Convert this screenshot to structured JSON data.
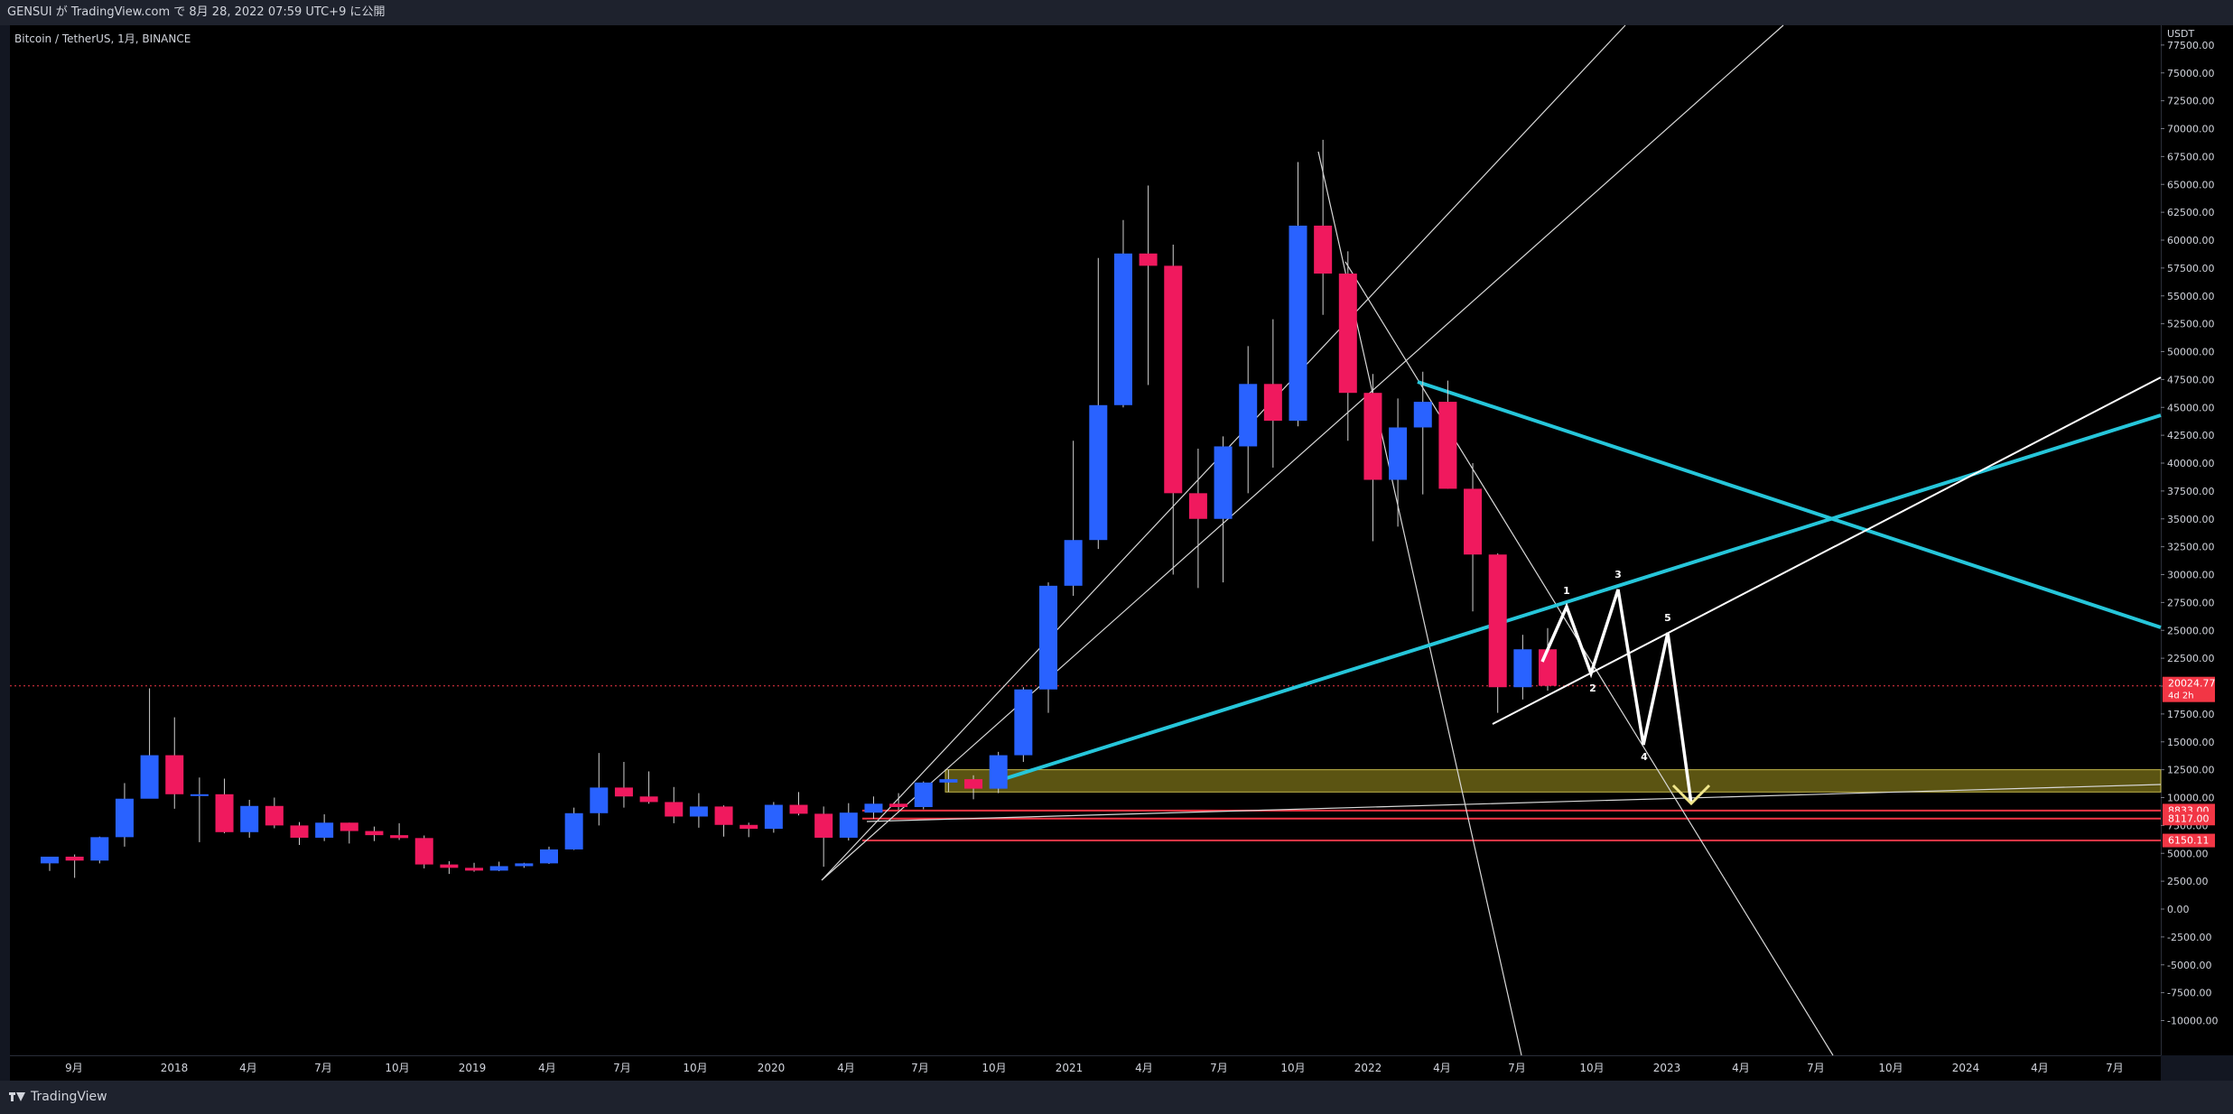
{
  "header": {
    "title": "GENSUI が TradingView.com で 8月 28, 2022 07:59 UTC+9 に公開"
  },
  "footer": {
    "brand": "TradingView"
  },
  "chart_data": {
    "type": "candlestick",
    "symbol": "Bitcoin / TetherUS, 1月, BINANCE",
    "currency": "USDT",
    "ylim": [
      -11000,
      80000
    ],
    "y_ticks": [
      "77500.00",
      "75000.00",
      "72500.00",
      "70000.00",
      "67500.00",
      "65000.00",
      "62500.00",
      "60000.00",
      "57500.00",
      "55000.00",
      "52500.00",
      "50000.00",
      "47500.00",
      "45000.00",
      "42500.00",
      "40000.00",
      "37500.00",
      "35000.00",
      "32500.00",
      "30000.00",
      "27500.00",
      "25000.00",
      "22500.00",
      "20000.00",
      "17500.00",
      "15000.00",
      "12500.00",
      "10000.00",
      "7500.00",
      "5000.00",
      "2500.00",
      "0.00",
      "-2500.00",
      "-5000.00",
      "-7500.00",
      "-10000.00"
    ],
    "x_ticks": [
      "9月",
      "2018",
      "4月",
      "7月",
      "10月",
      "2019",
      "4月",
      "7月",
      "10月",
      "2020",
      "4月",
      "7月",
      "10月",
      "2021",
      "4月",
      "7月",
      "10月",
      "2022",
      "4月",
      "7月",
      "10月",
      "2023",
      "4月",
      "7月",
      "10月",
      "2024",
      "4月",
      "7月"
    ],
    "price_labels": [
      {
        "value": 20024.77,
        "text": "20024.77",
        "sub": "4d 2h",
        "color": "#f23645"
      },
      {
        "value": 8833.0,
        "text": "8833.00",
        "color": "#f23645"
      },
      {
        "value": 8117.0,
        "text": "8117.00",
        "color": "#f23645"
      },
      {
        "value": 6150.11,
        "text": "6150.11",
        "color": "#f23645"
      }
    ],
    "candles": [
      {
        "t": "2017-08",
        "o": 4100,
        "h": 4650,
        "l": 3420,
        "c": 4700
      },
      {
        "t": "2017-09",
        "o": 4700,
        "h": 4900,
        "l": 2800,
        "c": 4350
      },
      {
        "t": "2017-10",
        "o": 4350,
        "h": 6500,
        "l": 4100,
        "c": 6450
      },
      {
        "t": "2017-11",
        "o": 6450,
        "h": 11300,
        "l": 5600,
        "c": 9900
      },
      {
        "t": "2017-12",
        "o": 9900,
        "h": 19800,
        "l": 10600,
        "c": 13800
      },
      {
        "t": "2018-01",
        "o": 13800,
        "h": 17200,
        "l": 9000,
        "c": 10300
      },
      {
        "t": "2018-02",
        "o": 10300,
        "h": 11800,
        "l": 6000,
        "c": 10300
      },
      {
        "t": "2018-03",
        "o": 10300,
        "h": 11700,
        "l": 6800,
        "c": 6900
      },
      {
        "t": "2018-04",
        "o": 6900,
        "h": 9800,
        "l": 6400,
        "c": 9250
      },
      {
        "t": "2018-05",
        "o": 9250,
        "h": 10000,
        "l": 7250,
        "c": 7500
      },
      {
        "t": "2018-06",
        "o": 7500,
        "h": 7800,
        "l": 5750,
        "c": 6400
      },
      {
        "t": "2018-07",
        "o": 6400,
        "h": 8500,
        "l": 6100,
        "c": 7750
      },
      {
        "t": "2018-08",
        "o": 7750,
        "h": 7750,
        "l": 5880,
        "c": 7000
      },
      {
        "t": "2018-09",
        "o": 7000,
        "h": 7400,
        "l": 6100,
        "c": 6630
      },
      {
        "t": "2018-10",
        "o": 6630,
        "h": 7700,
        "l": 6200,
        "c": 6370
      },
      {
        "t": "2018-11",
        "o": 6370,
        "h": 6600,
        "l": 3650,
        "c": 4000
      },
      {
        "t": "2018-12",
        "o": 4000,
        "h": 4300,
        "l": 3150,
        "c": 3700
      },
      {
        "t": "2019-01",
        "o": 3700,
        "h": 4150,
        "l": 3350,
        "c": 3450
      },
      {
        "t": "2019-02",
        "o": 3450,
        "h": 4250,
        "l": 3400,
        "c": 3850
      },
      {
        "t": "2019-03",
        "o": 3850,
        "h": 4150,
        "l": 3700,
        "c": 4100
      },
      {
        "t": "2019-04",
        "o": 4100,
        "h": 5600,
        "l": 4050,
        "c": 5350
      },
      {
        "t": "2019-05",
        "o": 5350,
        "h": 9100,
        "l": 5300,
        "c": 8600
      },
      {
        "t": "2019-06",
        "o": 8600,
        "h": 14000,
        "l": 7500,
        "c": 10900
      },
      {
        "t": "2019-07",
        "o": 10900,
        "h": 13200,
        "l": 9100,
        "c": 10100
      },
      {
        "t": "2019-08",
        "o": 10100,
        "h": 12350,
        "l": 9450,
        "c": 9600
      },
      {
        "t": "2019-09",
        "o": 9600,
        "h": 10950,
        "l": 7700,
        "c": 8300
      },
      {
        "t": "2019-10",
        "o": 8300,
        "h": 10400,
        "l": 7300,
        "c": 9200
      },
      {
        "t": "2019-11",
        "o": 9200,
        "h": 9300,
        "l": 6500,
        "c": 7550
      },
      {
        "t": "2019-12",
        "o": 7550,
        "h": 7750,
        "l": 6450,
        "c": 7200
      },
      {
        "t": "2020-01",
        "o": 7200,
        "h": 9600,
        "l": 6850,
        "c": 9350
      },
      {
        "t": "2020-02",
        "o": 9350,
        "h": 10500,
        "l": 8400,
        "c": 8550
      },
      {
        "t": "2020-03",
        "o": 8550,
        "h": 9200,
        "l": 3800,
        "c": 6400
      },
      {
        "t": "2020-04",
        "o": 6400,
        "h": 9500,
        "l": 6150,
        "c": 8650
      },
      {
        "t": "2020-05",
        "o": 8650,
        "h": 10100,
        "l": 8100,
        "c": 9450
      },
      {
        "t": "2020-06",
        "o": 9450,
        "h": 10400,
        "l": 8900,
        "c": 9150
      },
      {
        "t": "2020-07",
        "o": 9150,
        "h": 11450,
        "l": 8950,
        "c": 11350
      },
      {
        "t": "2020-08",
        "o": 11350,
        "h": 12500,
        "l": 10500,
        "c": 11650
      },
      {
        "t": "2020-09",
        "o": 11650,
        "h": 12000,
        "l": 9850,
        "c": 10800
      },
      {
        "t": "2020-10",
        "o": 10800,
        "h": 14100,
        "l": 10400,
        "c": 13800
      },
      {
        "t": "2020-11",
        "o": 13800,
        "h": 19900,
        "l": 13200,
        "c": 19700
      },
      {
        "t": "2020-12",
        "o": 19700,
        "h": 29300,
        "l": 17600,
        "c": 29000
      },
      {
        "t": "2021-01",
        "o": 29000,
        "h": 42000,
        "l": 28100,
        "c": 33100
      },
      {
        "t": "2021-02",
        "o": 33100,
        "h": 58400,
        "l": 32300,
        "c": 45200
      },
      {
        "t": "2021-03",
        "o": 45200,
        "h": 61800,
        "l": 45000,
        "c": 58800
      },
      {
        "t": "2021-04",
        "o": 58800,
        "h": 64900,
        "l": 47000,
        "c": 57700
      },
      {
        "t": "2021-05",
        "o": 57700,
        "h": 59600,
        "l": 30000,
        "c": 37300
      },
      {
        "t": "2021-06",
        "o": 37300,
        "h": 41300,
        "l": 28800,
        "c": 35000
      },
      {
        "t": "2021-07",
        "o": 35000,
        "h": 42400,
        "l": 29300,
        "c": 41500
      },
      {
        "t": "2021-08",
        "o": 41500,
        "h": 50500,
        "l": 37300,
        "c": 47100
      },
      {
        "t": "2021-09",
        "o": 47100,
        "h": 52900,
        "l": 39600,
        "c": 43800
      },
      {
        "t": "2021-10",
        "o": 43800,
        "h": 67000,
        "l": 43300,
        "c": 61300
      },
      {
        "t": "2021-11",
        "o": 61300,
        "h": 69000,
        "l": 53300,
        "c": 57000
      },
      {
        "t": "2021-12",
        "o": 57000,
        "h": 59000,
        "l": 42000,
        "c": 46300
      },
      {
        "t": "2022-01",
        "o": 46300,
        "h": 48000,
        "l": 33000,
        "c": 38500
      },
      {
        "t": "2022-02",
        "o": 38500,
        "h": 45800,
        "l": 34300,
        "c": 43200
      },
      {
        "t": "2022-03",
        "o": 43200,
        "h": 48200,
        "l": 37200,
        "c": 45500
      },
      {
        "t": "2022-04",
        "o": 45500,
        "h": 47400,
        "l": 37700,
        "c": 37700
      },
      {
        "t": "2022-05",
        "o": 37700,
        "h": 40000,
        "l": 26700,
        "c": 31800
      },
      {
        "t": "2022-06",
        "o": 31800,
        "h": 31900,
        "l": 17600,
        "c": 19900
      },
      {
        "t": "2022-07",
        "o": 19900,
        "h": 24600,
        "l": 18800,
        "c": 23300
      },
      {
        "t": "2022-08",
        "o": 23300,
        "h": 25200,
        "l": 19600,
        "c": 20024.77
      }
    ],
    "wave_labels": [
      "1",
      "2",
      "3",
      "4",
      "5"
    ]
  }
}
